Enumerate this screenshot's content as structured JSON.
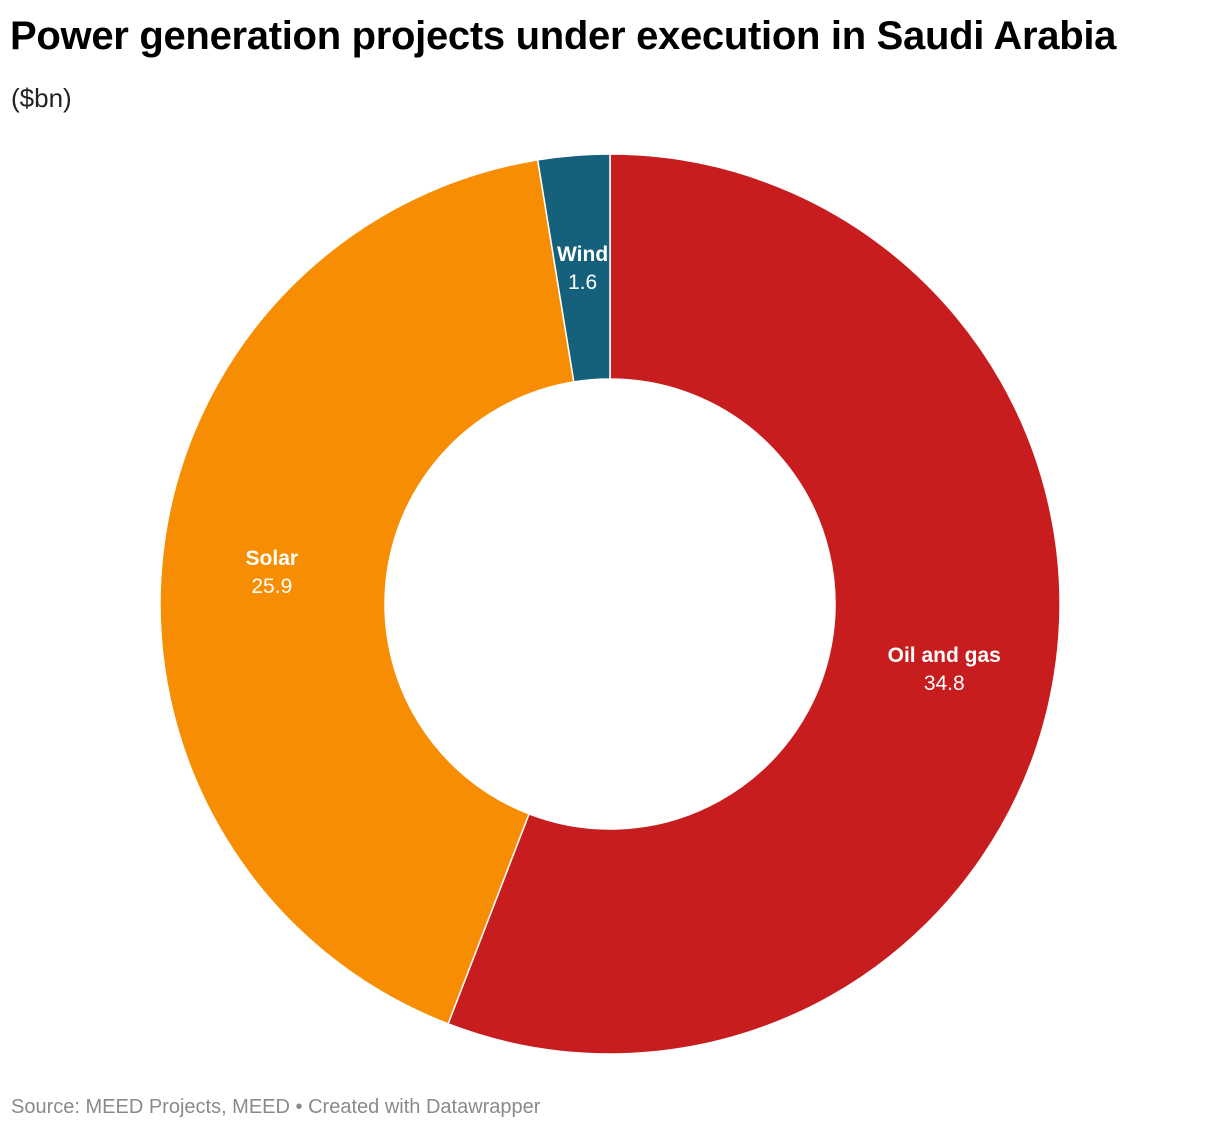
{
  "chart_data": {
    "type": "pie",
    "title": "Power generation projects under execution in Saudi Arabia",
    "subtitle": "($bn)",
    "categories": [
      "Oil and gas",
      "Solar",
      "Wind"
    ],
    "values": [
      34.8,
      25.9,
      1.6
    ],
    "value_labels": [
      "34.8",
      "25.9",
      "1.6"
    ],
    "colors": [
      "#c71d1f",
      "#f78d02",
      "#15607a"
    ],
    "donut": true,
    "start_at": "top",
    "direction": "clockwise",
    "legend": "none",
    "grid": false
  },
  "footer": {
    "source": "Source: MEED Projects, MEED",
    "separator": "•",
    "credit": "Created with Datawrapper"
  }
}
